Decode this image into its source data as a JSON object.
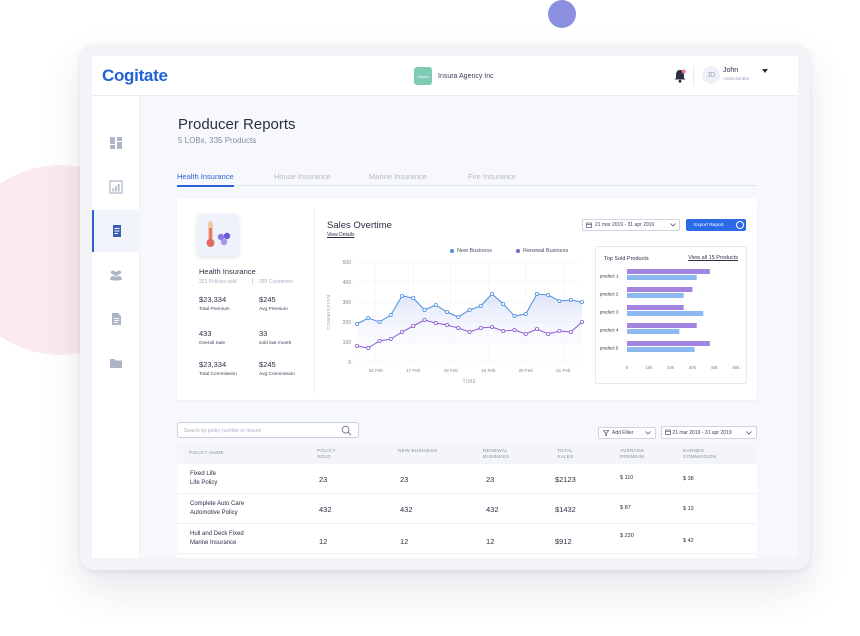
{
  "header": {
    "logo": "Cogitate",
    "agency_badge": "Insura",
    "agency_name": "Insura Agency Inc",
    "user": {
      "initials": "JD",
      "name": "John",
      "role": "Administrator"
    }
  },
  "sidebar": {
    "items": [
      {
        "name": "dashboard-icon"
      },
      {
        "name": "analytics-icon"
      },
      {
        "name": "reports-icon",
        "active": true
      },
      {
        "name": "customers-icon"
      },
      {
        "name": "documents-icon"
      },
      {
        "name": "folder-icon"
      }
    ]
  },
  "page": {
    "title": "Producer Reports",
    "subtitle": "5 LOBs, 335 Products"
  },
  "tabs": [
    {
      "label": "Health Insurance",
      "active": true
    },
    {
      "label": "House Insurance"
    },
    {
      "label": "Marine Insurance"
    },
    {
      "label": "Fire Insurance"
    }
  ],
  "summary": {
    "lob_name": "Health Insurance",
    "policies_sold": "323 Policies sold",
    "customers": "293 Customers",
    "stats": [
      {
        "value": "$23,334",
        "label": "Total Premium"
      },
      {
        "value": "$245",
        "label": "Avg Premium"
      },
      {
        "value": "433",
        "label": "Overall Sale"
      },
      {
        "value": "33",
        "label": "sold last month"
      },
      {
        "value": "$23,334",
        "label": "Total Commission"
      },
      {
        "value": "$245",
        "label": "Avg Commission"
      }
    ]
  },
  "sales_panel": {
    "title": "Sales Overtime",
    "link": "View Details",
    "date_range": "21 mar 2019 - 31 apr 2019",
    "export_label": "Export Report"
  },
  "colors": {
    "new_business": "#4a8fe0",
    "renewal_business": "#8a5ad1",
    "accent": "#2b6be8"
  },
  "chart_data": [
    {
      "type": "line",
      "xlabel": "TIME",
      "ylabel": "COMMISSION",
      "ylim": [
        0,
        500
      ],
      "yticks": [
        "0",
        "100",
        "200",
        "300",
        "400",
        "500"
      ],
      "xtick_labels": [
        "16 Feb",
        "17 Feb",
        "18 Feb",
        "19 Feb",
        "20 Feb",
        "21 Feb"
      ],
      "x": [
        0,
        0.5,
        1,
        1.5,
        2,
        2.5,
        3,
        3.5,
        4,
        4.5,
        5,
        5.5,
        6,
        6.5,
        7,
        7.5,
        8,
        8.5,
        9,
        9.5,
        10
      ],
      "legend": "top",
      "grid": true,
      "series": [
        {
          "name": "New Business",
          "values": [
            190,
            220,
            200,
            235,
            330,
            320,
            260,
            285,
            250,
            225,
            260,
            280,
            340,
            290,
            230,
            240,
            340,
            335,
            305,
            310,
            300
          ]
        },
        {
          "name": "Renewal Business",
          "values": [
            80,
            70,
            105,
            115,
            150,
            180,
            210,
            195,
            185,
            170,
            150,
            170,
            175,
            155,
            160,
            140,
            165,
            140,
            155,
            150,
            200
          ]
        }
      ]
    },
    {
      "type": "bar",
      "orientation": "horizontal",
      "title": "Top Sold Products",
      "link": "View all 15 Products",
      "categories": [
        "product 1",
        "product 2",
        "product 3",
        "product 4",
        "product 5"
      ],
      "xticks": [
        "0",
        "10k",
        "20k",
        "30k",
        "40k",
        "50k"
      ],
      "xlim": [
        0,
        50000
      ],
      "series": [
        {
          "values": [
            38000,
            30000,
            26000,
            32000,
            38000
          ]
        },
        {
          "values": [
            32000,
            26000,
            35000,
            24000,
            31000
          ]
        }
      ]
    }
  ],
  "filters": {
    "search_placeholder": "Search by policy number or Insurer",
    "add_filter": "Add Filter",
    "date_range": "21 mar 2019 - 31 apr 2019"
  },
  "table": {
    "columns": [
      "POLICY NAME",
      "POLICY SOLD",
      "NEW BUSINESS",
      "RENEWAL BUSINESS",
      "TOTAL SALES",
      "AVERAGE PREMIUM",
      "EARNED COMMISSION"
    ],
    "rows": [
      {
        "name1": "Fixed Life",
        "name2": "Life Policy",
        "sold": "23",
        "new": "23",
        "renewal": "23",
        "total": "$2123",
        "avg": "$ 110",
        "comm": "$ 38"
      },
      {
        "name1": "Complete Auto Care",
        "name2": "Automotive Policy",
        "sold": "432",
        "new": "432",
        "renewal": "432",
        "total": "$1432",
        "avg": "$ 87",
        "comm": "$ 13"
      },
      {
        "name1": "Hull and Deck Fixed",
        "name2": "Marine Insurance",
        "sold": "12",
        "new": "12",
        "renewal": "12",
        "total": "$912",
        "avg": "$ 230",
        "comm": "$ 42"
      }
    ]
  }
}
